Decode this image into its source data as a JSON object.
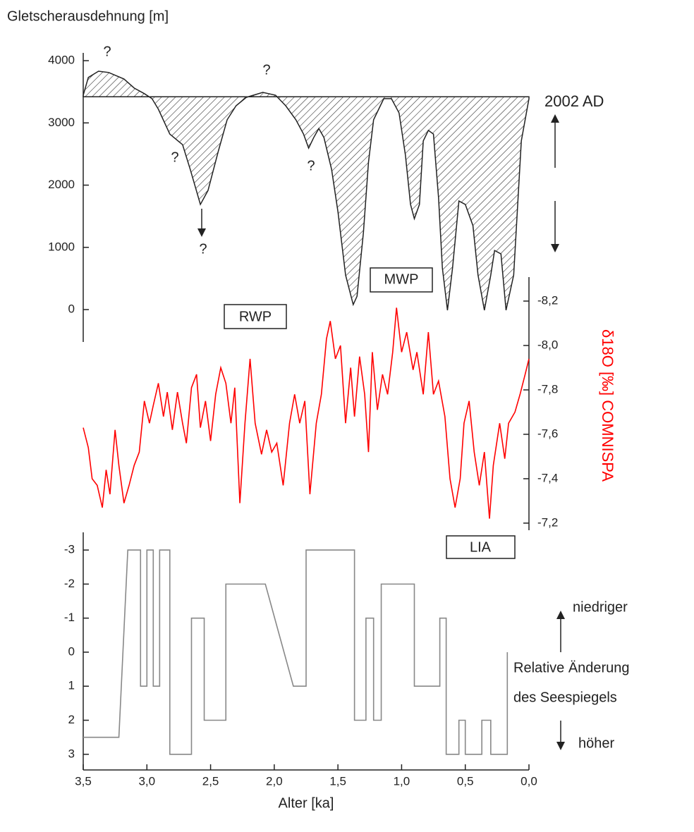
{
  "chart_data": [
    {
      "type": "area",
      "title": "Gletscherausdehnung [m]",
      "color": "#222222",
      "xlim": [
        3.5,
        0
      ],
      "ylim": [
        -520,
        4125
      ],
      "yticks": [
        0,
        1000,
        2000,
        3000,
        4000
      ],
      "baseline": 3420,
      "baseline_label": "2002 AD",
      "annotations": [
        "?",
        "?",
        "?",
        "?",
        "?"
      ],
      "x": [
        3.5,
        3.46,
        3.38,
        3.3,
        3.18,
        3.1,
        3.02,
        2.96,
        2.91,
        2.82,
        2.72,
        2.66,
        2.58,
        2.52,
        2.44,
        2.37,
        2.3,
        2.22,
        2.09,
        1.99,
        1.91,
        1.83,
        1.77,
        1.73,
        1.69,
        1.65,
        1.61,
        1.55,
        1.5,
        1.44,
        1.38,
        1.35,
        1.3,
        1.26,
        1.22,
        1.14,
        1.08,
        1.02,
        0.97,
        0.93,
        0.9,
        0.86,
        0.83,
        0.79,
        0.75,
        0.71,
        0.68,
        0.64,
        0.6,
        0.55,
        0.5,
        0.44,
        0.4,
        0.35,
        0.3,
        0.27,
        0.22,
        0.18,
        0.12,
        0.06,
        0.0
      ],
      "values": [
        3445,
        3730,
        3830,
        3810,
        3705,
        3560,
        3470,
        3390,
        3220,
        2820,
        2650,
        2255,
        1690,
        1915,
        2540,
        3050,
        3275,
        3410,
        3490,
        3445,
        3275,
        3050,
        2820,
        2595,
        2765,
        2910,
        2765,
        2255,
        1575,
        555,
        80,
        215,
        1235,
        2370,
        3050,
        3390,
        3390,
        3160,
        2480,
        1690,
        1460,
        1690,
        2710,
        2880,
        2820,
        1800,
        670,
        -10,
        670,
        1745,
        1690,
        1350,
        555,
        -10,
        555,
        950,
        895,
        -10,
        555,
        2710,
        3390
      ]
    },
    {
      "type": "line",
      "ylabel": "δ18O [‰] COMNISPA",
      "color": "#ff0000",
      "xlim": [
        3.5,
        0
      ],
      "ylim": [
        -7.168,
        -8.308
      ],
      "yticks": [
        {
          "value": -8.2,
          "label": "-8,2"
        },
        {
          "value": -8.0,
          "label": "-8,0"
        },
        {
          "value": -7.8,
          "label": "-7,8"
        },
        {
          "value": -7.6,
          "label": "-7,6"
        },
        {
          "value": -7.4,
          "label": "-7,4"
        },
        {
          "value": -7.2,
          "label": "-7,2"
        }
      ],
      "annotations": [
        "RWP",
        "MWP",
        "LIA"
      ],
      "x": [
        3.5,
        3.46,
        3.43,
        3.39,
        3.35,
        3.32,
        3.29,
        3.25,
        3.22,
        3.18,
        3.14,
        3.1,
        3.06,
        3.02,
        2.98,
        2.95,
        2.91,
        2.87,
        2.84,
        2.8,
        2.76,
        2.72,
        2.69,
        2.65,
        2.61,
        2.58,
        2.54,
        2.5,
        2.46,
        2.42,
        2.38,
        2.34,
        2.31,
        2.27,
        2.23,
        2.19,
        2.15,
        2.1,
        2.06,
        2.02,
        1.98,
        1.93,
        1.88,
        1.84,
        1.8,
        1.76,
        1.72,
        1.67,
        1.63,
        1.59,
        1.56,
        1.52,
        1.48,
        1.44,
        1.4,
        1.37,
        1.33,
        1.29,
        1.26,
        1.23,
        1.19,
        1.15,
        1.11,
        1.07,
        1.04,
        1.0,
        0.96,
        0.91,
        0.88,
        0.83,
        0.79,
        0.75,
        0.71,
        0.66,
        0.62,
        0.58,
        0.54,
        0.51,
        0.47,
        0.43,
        0.39,
        0.35,
        0.31,
        0.28,
        0.23,
        0.19,
        0.16,
        0.11,
        0.07,
        0.03,
        0.0
      ],
      "values": [
        -7.63,
        -7.54,
        -7.4,
        -7.37,
        -7.27,
        -7.44,
        -7.33,
        -7.62,
        -7.46,
        -7.29,
        -7.37,
        -7.46,
        -7.52,
        -7.75,
        -7.65,
        -7.73,
        -7.83,
        -7.68,
        -7.79,
        -7.62,
        -7.79,
        -7.65,
        -7.56,
        -7.81,
        -7.87,
        -7.63,
        -7.75,
        -7.57,
        -7.78,
        -7.9,
        -7.83,
        -7.65,
        -7.81,
        -7.29,
        -7.65,
        -7.94,
        -7.65,
        -7.51,
        -7.62,
        -7.52,
        -7.56,
        -7.37,
        -7.65,
        -7.78,
        -7.65,
        -7.75,
        -7.33,
        -7.65,
        -7.78,
        -8.03,
        -8.11,
        -7.94,
        -8.0,
        -7.65,
        -7.9,
        -7.68,
        -7.95,
        -7.78,
        -7.52,
        -7.97,
        -7.71,
        -7.87,
        -7.78,
        -7.97,
        -8.17,
        -7.97,
        -8.06,
        -7.89,
        -7.97,
        -7.78,
        -8.06,
        -7.78,
        -7.84,
        -7.68,
        -7.4,
        -7.27,
        -7.4,
        -7.65,
        -7.75,
        -7.52,
        -7.37,
        -7.52,
        -7.22,
        -7.46,
        -7.65,
        -7.49,
        -7.65,
        -7.7,
        -7.78,
        -7.87,
        -7.94
      ]
    },
    {
      "type": "line",
      "xlabel": "Alter [ka]",
      "color": "#888888",
      "xlim": [
        3.5,
        0
      ],
      "ylim": [
        3.46,
        -3.52
      ],
      "yticks": [
        -3,
        -2,
        -1,
        0,
        1,
        2,
        3
      ],
      "xticks": [
        {
          "value": 3.5,
          "label": "3,5"
        },
        {
          "value": 3.0,
          "label": "3,0"
        },
        {
          "value": 2.5,
          "label": "2,5"
        },
        {
          "value": 2.0,
          "label": "2,0"
        },
        {
          "value": 1.5,
          "label": "1,5"
        },
        {
          "value": 1.0,
          "label": "1,0"
        },
        {
          "value": 0.5,
          "label": "0,5"
        },
        {
          "value": 0.0,
          "label": "0,0"
        }
      ],
      "annotations": [
        "niedriger",
        "Relative Änderung",
        "des Seespiegels",
        "höher"
      ],
      "x": [
        3.5,
        3.22,
        3.15,
        3.05,
        3.05,
        3.0,
        3.0,
        2.95,
        2.95,
        2.9,
        2.9,
        2.82,
        2.82,
        2.65,
        2.65,
        2.55,
        2.55,
        2.38,
        2.38,
        2.07,
        1.85,
        1.75,
        1.75,
        1.37,
        1.37,
        1.28,
        1.28,
        1.22,
        1.22,
        1.16,
        1.16,
        0.9,
        0.9,
        0.7,
        0.7,
        0.65,
        0.65,
        0.55,
        0.55,
        0.5,
        0.5,
        0.37,
        0.37,
        0.3,
        0.3,
        0.17,
        0.17
      ],
      "values": [
        2.5,
        2.5,
        -3,
        -3,
        1,
        1,
        -3,
        -3,
        1,
        1,
        -3,
        -3,
        3,
        3,
        -1,
        -1,
        2,
        2,
        -2,
        -2,
        1,
        1,
        -3,
        -3,
        2,
        2,
        -1,
        -1,
        2,
        2,
        -2,
        -2,
        1,
        1,
        -1,
        -1,
        3,
        3,
        2,
        2,
        3,
        3,
        2,
        2,
        3,
        3,
        0
      ]
    }
  ]
}
